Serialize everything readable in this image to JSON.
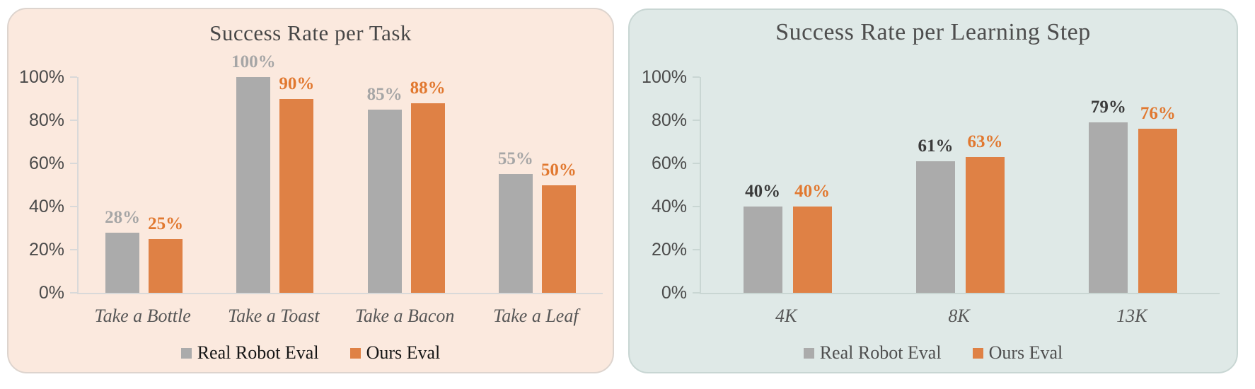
{
  "page": {
    "background": "#ffffff"
  },
  "chart_data": [
    {
      "type": "bar",
      "title": "Success Rate per Task",
      "categories": [
        "Take a Bottle",
        "Take a Toast",
        "Take a Bacon",
        "Take a Leaf"
      ],
      "series": [
        {
          "name": "Real Robot Eval",
          "values": [
            28,
            100,
            85,
            55
          ],
          "bar_color": "#ABABAB",
          "label_color": "#A6A6A6"
        },
        {
          "name": "Ours Eval",
          "values": [
            25,
            90,
            88,
            50
          ],
          "bar_color": "#DF8145",
          "label_color": "#E1782F"
        }
      ],
      "value_labels": [
        [
          "28%",
          "100%",
          "85%",
          "55%"
        ],
        [
          "25%",
          "90%",
          "88%",
          "50%"
        ]
      ],
      "y_tick_labels": [
        "100%",
        "80%",
        "60%",
        "40%",
        "20%",
        "0%"
      ],
      "ylim": [
        0,
        100
      ],
      "grid": false,
      "legend_position": "bottom",
      "panel_bg": "#FBE9DE",
      "panel_border": "#DDD4CE",
      "axis_color": "#D9D9D9",
      "title_color": "#474747",
      "tick_label_color": "#4A4A4A",
      "category_label_color": "#565656",
      "legend_text_color": "#161616"
    },
    {
      "type": "bar",
      "title": "Success Rate per Learning Step",
      "categories": [
        "4K",
        "8K",
        "13K"
      ],
      "series": [
        {
          "name": "Real Robot Eval",
          "values": [
            40,
            61,
            79
          ],
          "bar_color": "#ABABAB",
          "label_color": "#3B3B3B"
        },
        {
          "name": "Ours Eval",
          "values": [
            40,
            63,
            76
          ],
          "bar_color": "#DF8145",
          "label_color": "#E1782F"
        }
      ],
      "value_labels": [
        [
          "40%",
          "61%",
          "79%"
        ],
        [
          "40%",
          "63%",
          "76%"
        ]
      ],
      "y_tick_labels": [
        "100%",
        "80%",
        "60%",
        "40%",
        "20%",
        "0%"
      ],
      "ylim": [
        0,
        100
      ],
      "grid": false,
      "legend_position": "bottom",
      "panel_bg": "#DFE9E7",
      "panel_border": "#C8D6D3",
      "axis_color": "#C9D6D3",
      "title_color": "#4E4E4E",
      "tick_label_color": "#4A4A4A",
      "category_label_color": "#565656",
      "legend_text_color": "#4F4F4F"
    }
  ]
}
